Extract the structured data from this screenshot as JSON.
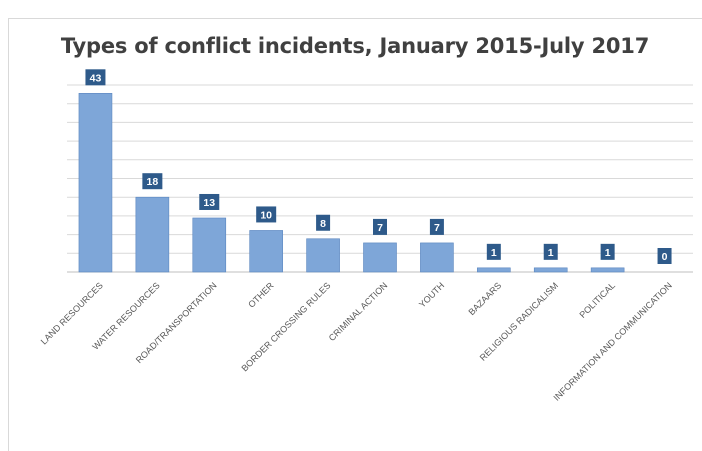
{
  "chart_data": {
    "type": "bar",
    "title": "Types of conflict incidents, January 2015-July 2017",
    "categories": [
      "LAND RESOURCES",
      "WATER RESOURCES",
      "ROAD/TRANSPORTATION",
      "OTHER",
      "BORDER CROSSING RULES",
      "CRIMINAL ACTION",
      "YOUTH",
      "BAZAARS",
      "RELIGIOUS RADICALISM",
      "POLITICAL",
      "INFORMATION AND COMMUNICATION"
    ],
    "values": [
      43,
      18,
      13,
      10,
      8,
      7,
      7,
      1,
      1,
      1,
      0
    ],
    "data_labels": [
      "43",
      "18",
      "13",
      "10",
      "8",
      "7",
      "7",
      "1",
      "1",
      "1",
      "0"
    ],
    "xlabel": "",
    "ylabel": "",
    "ylim": [
      0,
      45
    ],
    "grid": true,
    "legend": "none",
    "colors": {
      "bar": "#7ea6d8",
      "bar_edge": "#5b86bf",
      "label_box": "#2e5a8a",
      "label_text": "#ffffff",
      "grid": "#d9d9d9",
      "axis_text": "#595959",
      "title": "#404040"
    }
  }
}
